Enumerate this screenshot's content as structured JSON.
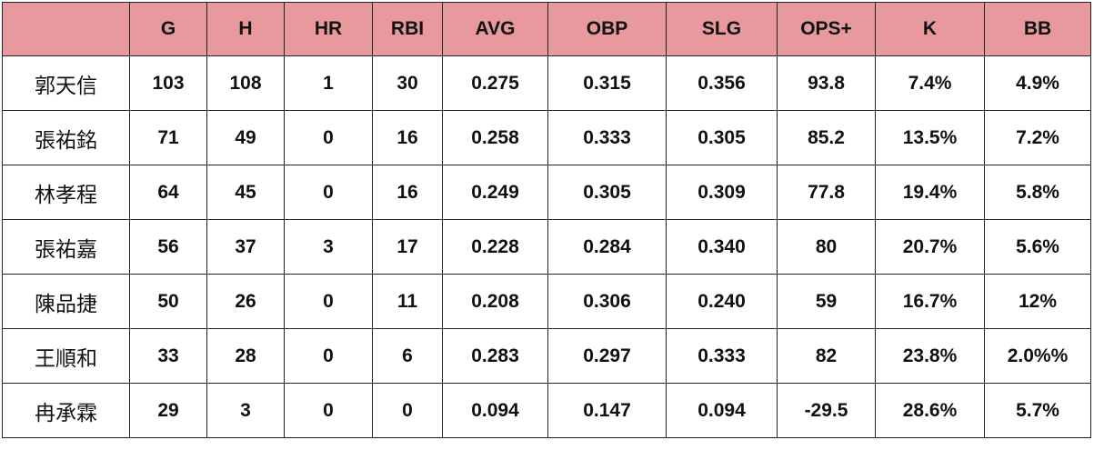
{
  "table": {
    "columns": [
      "G",
      "H",
      "HR",
      "RBI",
      "AVG",
      "OBP",
      "SLG",
      "OPS+",
      "K",
      "BB"
    ],
    "rows": [
      [
        "郭天信",
        "103",
        "108",
        "1",
        "30",
        "0.275",
        "0.315",
        "0.356",
        "93.8",
        "7.4%",
        "4.9%"
      ],
      [
        "張祐銘",
        "71",
        "49",
        "0",
        "16",
        "0.258",
        "0.333",
        "0.305",
        "85.2",
        "13.5%",
        "7.2%"
      ],
      [
        "林孝程",
        "64",
        "45",
        "0",
        "16",
        "0.249",
        "0.305",
        "0.309",
        "77.8",
        "19.4%",
        "5.8%"
      ],
      [
        "張祐嘉",
        "56",
        "37",
        "3",
        "17",
        "0.228",
        "0.284",
        "0.340",
        "80",
        "20.7%",
        "5.6%"
      ],
      [
        "陳品捷",
        "50",
        "26",
        "0",
        "11",
        "0.208",
        "0.306",
        "0.240",
        "59",
        "16.7%",
        "12%"
      ],
      [
        "王順和",
        "33",
        "28",
        "0",
        "6",
        "0.283",
        "0.297",
        "0.333",
        "82",
        "23.8%",
        "2.0%%"
      ],
      [
        "冉承霖",
        "29",
        "3",
        "0",
        "0",
        "0.094",
        "0.147",
        "0.094",
        "-29.5",
        "28.6%",
        "5.7%"
      ]
    ]
  }
}
